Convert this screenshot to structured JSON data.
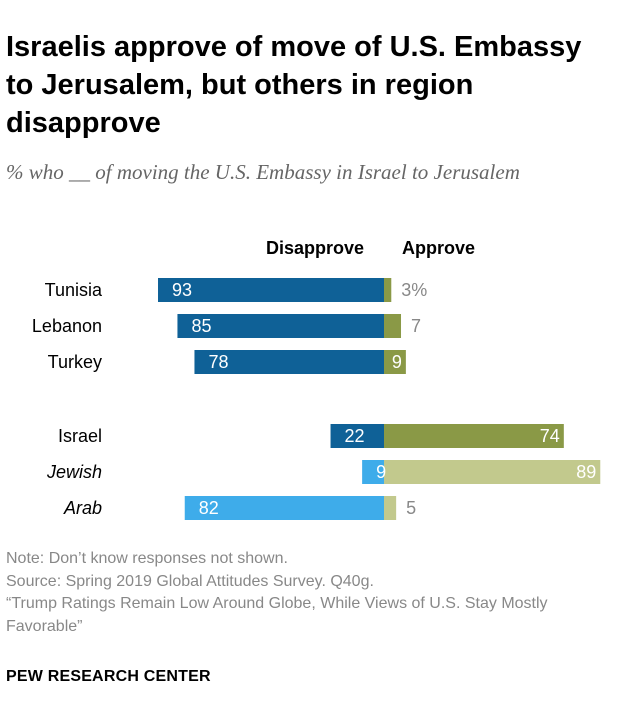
{
  "title": "Israelis approve of move of U.S. Embassy to Jerusalem, but others in region disapprove",
  "subtitle": "% who __ of moving the U.S. Embassy in Israel to Jerusalem",
  "colors": {
    "disapprove": "#0f6197",
    "approve": "#8a9946",
    "disapprove_light": "#3eacea",
    "approve_light": "#c2c98d",
    "outside_label": "#888888"
  },
  "chart_data": {
    "type": "bar",
    "orientation": "horizontal-diverging",
    "series_names": [
      "Disapprove",
      "Approve"
    ],
    "rows": [
      {
        "label": "Tunisia",
        "disapprove": 93,
        "approve": 3,
        "approve_label": "3%",
        "disapprove_label": "93",
        "style": "normal",
        "group": 1
      },
      {
        "label": "Lebanon",
        "disapprove": 85,
        "approve": 7,
        "approve_label": "7",
        "disapprove_label": "85",
        "style": "normal",
        "group": 1
      },
      {
        "label": "Turkey",
        "disapprove": 78,
        "approve": 9,
        "approve_label": "9",
        "disapprove_label": "78",
        "style": "normal",
        "group": 1
      },
      {
        "label": "Israel",
        "disapprove": 22,
        "approve": 74,
        "approve_label": "74",
        "disapprove_label": "22",
        "style": "normal",
        "group": 2
      },
      {
        "label": "Jewish",
        "disapprove": 9,
        "approve": 89,
        "approve_label": "89",
        "disapprove_label": "9",
        "style": "italic-light",
        "group": 2
      },
      {
        "label": "Arab",
        "disapprove": 82,
        "approve": 5,
        "approve_label": "5",
        "disapprove_label": "82",
        "style": "italic-light",
        "group": 2
      }
    ]
  },
  "legend": {
    "disapprove": "Disapprove",
    "approve": "Approve"
  },
  "notes": {
    "note": "Note: Don’t know responses not shown.",
    "source": "Source: Spring 2019 Global Attitudes Survey. Q40g.",
    "report": "“Trump Ratings Remain Low Around Globe, While Views of U.S. Stay Mostly Favorable”"
  },
  "brand": "PEW RESEARCH CENTER"
}
